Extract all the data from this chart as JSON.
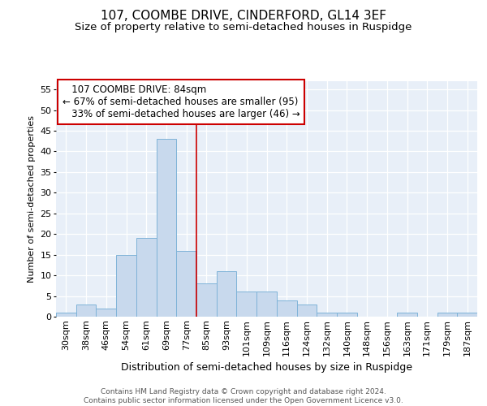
{
  "title": "107, COOMBE DRIVE, CINDERFORD, GL14 3EF",
  "subtitle": "Size of property relative to semi-detached houses in Ruspidge",
  "xlabel": "Distribution of semi-detached houses by size in Ruspidge",
  "ylabel": "Number of semi-detached properties",
  "categories": [
    "30sqm",
    "38sqm",
    "46sqm",
    "54sqm",
    "61sqm",
    "69sqm",
    "77sqm",
    "85sqm",
    "93sqm",
    "101sqm",
    "109sqm",
    "116sqm",
    "124sqm",
    "132sqm",
    "140sqm",
    "148sqm",
    "156sqm",
    "163sqm",
    "171sqm",
    "179sqm",
    "187sqm"
  ],
  "values": [
    1,
    3,
    2,
    15,
    19,
    43,
    16,
    8,
    11,
    6,
    6,
    4,
    3,
    1,
    1,
    0,
    0,
    1,
    0,
    1,
    1
  ],
  "bar_color": "#c8d9ed",
  "bar_edge_color": "#7fb3d8",
  "vline_index": 7.0,
  "vline_color": "#cc0000",
  "box_edge_color": "#cc0000",
  "property_label": "107 COOMBE DRIVE: 84sqm",
  "pct_smaller": 67,
  "n_smaller": 95,
  "pct_larger": 33,
  "n_larger": 46,
  "ylim": [
    0,
    57
  ],
  "yticks": [
    0,
    5,
    10,
    15,
    20,
    25,
    30,
    35,
    40,
    45,
    50,
    55
  ],
  "background_color": "#e8eff8",
  "grid_color": "#ffffff",
  "title_fontsize": 11,
  "subtitle_fontsize": 9.5,
  "xlabel_fontsize": 9,
  "ylabel_fontsize": 8,
  "tick_fontsize": 8,
  "annotation_fontsize": 8.5,
  "footer_fontsize": 6.5,
  "footer": "Contains HM Land Registry data © Crown copyright and database right 2024.\nContains public sector information licensed under the Open Government Licence v3.0."
}
